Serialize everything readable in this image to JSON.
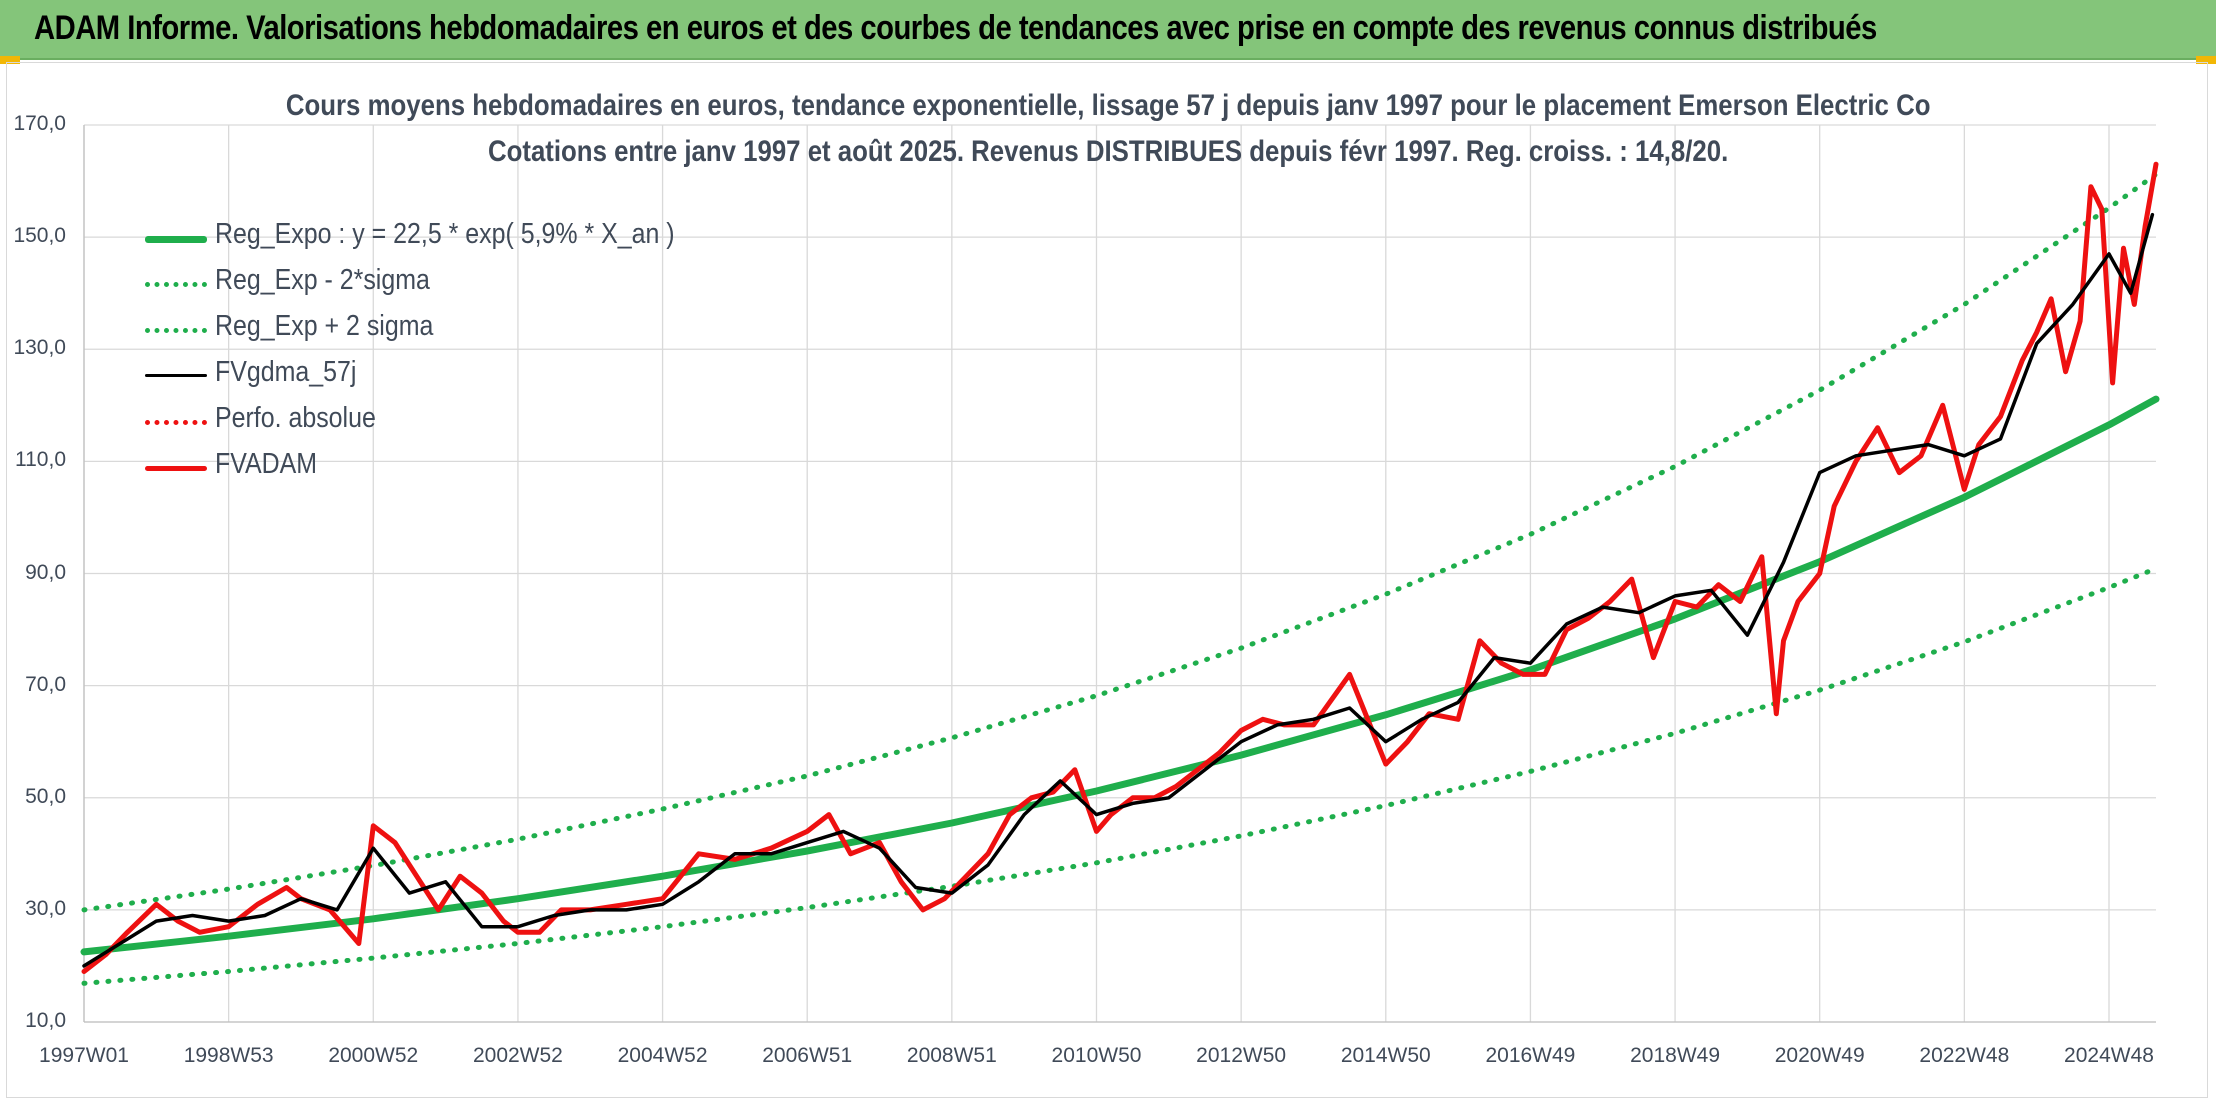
{
  "banner": {
    "title": "ADAM Informe. Valorisations hebdomadaires en euros et des courbes de tendances avec prise en compte des revenus connus distribués"
  },
  "colors": {
    "banner": "#84c57a",
    "regression": "#1fae4c",
    "smoothed": "#000000",
    "price": "#ee1111",
    "perfo": "#ee1111",
    "grid": "#d9d9d9",
    "text": "#404a58"
  },
  "chart_data": {
    "type": "line",
    "title": "Cours moyens hebdomadaires en euros, tendance exponentielle, lissage 57 j depuis janv 1997 pour le placement Emerson Electric Co",
    "subtitle": "Cotations entre janv 1997 et août 2025. Revenus DISTRIBUES depuis févr 1997. Reg. croiss. : 14,8/20.",
    "xlabel": "",
    "ylabel": "",
    "ylim": [
      10,
      170
    ],
    "xlim": [
      1997.0,
      2025.65
    ],
    "grid": true,
    "legend_position": "top-left",
    "y_ticks": [
      "10,0",
      "30,0",
      "50,0",
      "70,0",
      "90,0",
      "110,0",
      "130,0",
      "150,0",
      "170,0"
    ],
    "x_ticks": [
      {
        "label": "1997W01",
        "x": 1997.0
      },
      {
        "label": "1998W53",
        "x": 1999.0
      },
      {
        "label": "2000W52",
        "x": 2001.0
      },
      {
        "label": "2002W52",
        "x": 2003.0
      },
      {
        "label": "2004W52",
        "x": 2005.0
      },
      {
        "label": "2006W51",
        "x": 2007.0
      },
      {
        "label": "2008W51",
        "x": 2009.0
      },
      {
        "label": "2010W50",
        "x": 2011.0
      },
      {
        "label": "2012W50",
        "x": 2013.0
      },
      {
        "label": "2014W50",
        "x": 2015.0
      },
      {
        "label": "2016W49",
        "x": 2017.0
      },
      {
        "label": "2018W49",
        "x": 2019.0
      },
      {
        "label": "2020W49",
        "x": 2021.0
      },
      {
        "label": "2022W48",
        "x": 2023.0
      },
      {
        "label": "2024W48",
        "x": 2025.0
      }
    ],
    "series": [
      {
        "name": "Reg_Expo : y = 22,5 * exp( 5,9% *  X_an )",
        "style": "solid-thick",
        "color": "#1fae4c",
        "x": [
          1997.0,
          1999.0,
          2001.0,
          2003.0,
          2005.0,
          2007.0,
          2009.0,
          2011.0,
          2013.0,
          2015.0,
          2017.0,
          2019.0,
          2021.0,
          2023.0,
          2025.0,
          2025.65
        ],
        "y": [
          22.5,
          25.3,
          28.4,
          32.0,
          36.0,
          40.5,
          45.5,
          51.2,
          57.6,
          64.8,
          72.8,
          81.9,
          92.1,
          103.6,
          116.5,
          121.1
        ]
      },
      {
        "name": "Reg_Exp - 2*sigma",
        "style": "dotted",
        "color": "#1fae4c",
        "x": [
          1997.0,
          1999.0,
          2001.0,
          2003.0,
          2005.0,
          2007.0,
          2009.0,
          2011.0,
          2013.0,
          2015.0,
          2017.0,
          2019.0,
          2021.0,
          2023.0,
          2025.0,
          2025.65
        ],
        "y": [
          16.9,
          19.0,
          21.4,
          24.0,
          27.0,
          30.4,
          34.2,
          38.4,
          43.2,
          48.6,
          54.7,
          61.5,
          69.2,
          77.8,
          87.5,
          90.9
        ]
      },
      {
        "name": "Reg_Exp + 2 sigma",
        "style": "dotted",
        "color": "#1fae4c",
        "x": [
          1997.0,
          1999.0,
          2001.0,
          2003.0,
          2005.0,
          2007.0,
          2009.0,
          2011.0,
          2013.0,
          2015.0,
          2017.0,
          2019.0,
          2021.0,
          2023.0,
          2025.0,
          2025.65
        ],
        "y": [
          30.0,
          33.7,
          37.9,
          42.6,
          48.0,
          53.9,
          60.7,
          68.2,
          76.7,
          86.3,
          97.0,
          109.1,
          122.7,
          138.0,
          155.2,
          161.2
        ]
      },
      {
        "name": "FVgdma_57j",
        "style": "solid",
        "color": "#000000",
        "x": [
          1997.0,
          1997.5,
          1998.0,
          1998.5,
          1999.0,
          1999.5,
          2000.0,
          2000.5,
          2001.0,
          2001.5,
          2002.0,
          2002.5,
          2003.0,
          2003.5,
          2004.0,
          2004.5,
          2005.0,
          2005.5,
          2006.0,
          2006.5,
          2007.0,
          2007.5,
          2008.0,
          2008.5,
          2009.0,
          2009.5,
          2010.0,
          2010.5,
          2011.0,
          2011.5,
          2012.0,
          2012.5,
          2013.0,
          2013.5,
          2014.0,
          2014.5,
          2015.0,
          2015.5,
          2016.0,
          2016.5,
          2017.0,
          2017.5,
          2018.0,
          2018.5,
          2019.0,
          2019.5,
          2020.0,
          2020.5,
          2021.0,
          2021.5,
          2022.0,
          2022.5,
          2023.0,
          2023.5,
          2024.0,
          2024.5,
          2025.0,
          2025.3,
          2025.6
        ],
        "y": [
          20,
          24,
          28,
          29,
          28,
          29,
          32,
          30,
          41,
          33,
          35,
          27,
          27,
          29,
          30,
          30,
          31,
          35,
          40,
          40,
          42,
          44,
          41,
          34,
          33,
          38,
          47,
          53,
          47,
          49,
          50,
          55,
          60,
          63,
          64,
          66,
          60,
          64,
          67,
          75,
          74,
          81,
          84,
          83,
          86,
          87,
          79,
          92,
          108,
          111,
          112,
          113,
          111,
          114,
          131,
          138,
          147,
          140,
          154
        ]
      },
      {
        "name": "Perfo. absolue",
        "style": "dotted",
        "color": "#ee1111",
        "x": [],
        "y": []
      },
      {
        "name": "FVADAM",
        "style": "solid-thick",
        "color": "#ee1111",
        "x": [
          1997.0,
          1997.3,
          1997.6,
          1998.0,
          1998.3,
          1998.6,
          1999.0,
          1999.4,
          1999.8,
          2000.0,
          2000.4,
          2000.8,
          2001.0,
          2001.3,
          2001.6,
          2001.9,
          2002.2,
          2002.5,
          2002.8,
          2003.0,
          2003.3,
          2003.6,
          2004.0,
          2004.5,
          2005.0,
          2005.5,
          2006.0,
          2006.5,
          2007.0,
          2007.3,
          2007.6,
          2008.0,
          2008.3,
          2008.6,
          2008.9,
          2009.2,
          2009.5,
          2009.8,
          2010.1,
          2010.4,
          2010.7,
          2011.0,
          2011.2,
          2011.5,
          2011.8,
          2012.1,
          2012.4,
          2012.7,
          2013.0,
          2013.3,
          2013.6,
          2014.0,
          2014.5,
          2015.0,
          2015.3,
          2015.6,
          2016.0,
          2016.3,
          2016.6,
          2016.9,
          2017.2,
          2017.5,
          2017.8,
          2018.1,
          2018.4,
          2018.7,
          2019.0,
          2019.3,
          2019.6,
          2019.9,
          2020.2,
          2020.4,
          2020.5,
          2020.7,
          2021.0,
          2021.2,
          2021.5,
          2021.8,
          2022.1,
          2022.4,
          2022.7,
          2023.0,
          2023.2,
          2023.5,
          2023.8,
          2024.0,
          2024.2,
          2024.4,
          2024.6,
          2024.75,
          2024.9,
          2025.05,
          2025.2,
          2025.35,
          2025.5,
          2025.65
        ],
        "y": [
          19,
          22,
          26,
          31,
          28,
          26,
          27,
          31,
          34,
          32,
          30,
          24,
          45,
          42,
          36,
          30,
          36,
          33,
          28,
          26,
          26,
          30,
          30,
          31,
          32,
          40,
          39,
          41,
          44,
          47,
          40,
          42,
          35,
          30,
          32,
          36,
          40,
          47,
          50,
          51,
          55,
          44,
          47,
          50,
          50,
          52,
          55,
          58,
          62,
          64,
          63,
          63,
          72,
          56,
          60,
          65,
          64,
          78,
          74,
          72,
          72,
          80,
          82,
          85,
          89,
          75,
          85,
          84,
          88,
          85,
          93,
          65,
          78,
          85,
          90,
          102,
          110,
          116,
          108,
          111,
          120,
          105,
          113,
          118,
          128,
          133,
          139,
          126,
          135,
          159,
          155,
          124,
          148,
          138,
          152,
          163
        ]
      }
    ]
  }
}
